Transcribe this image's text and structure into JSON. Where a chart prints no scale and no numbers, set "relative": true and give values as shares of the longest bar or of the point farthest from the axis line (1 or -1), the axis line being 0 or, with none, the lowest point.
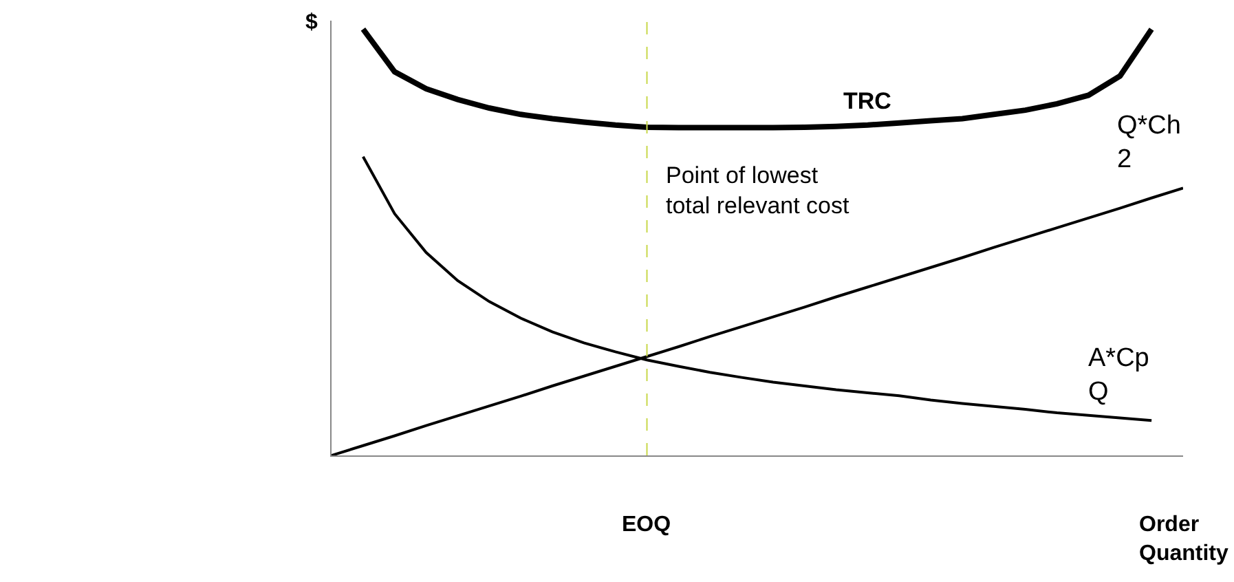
{
  "chart_data": {
    "type": "line",
    "relative": true,
    "ylabel": "$",
    "xlabel": "Order Quantity",
    "categories": [
      null,
      null,
      null,
      null,
      null,
      null,
      null,
      null,
      null,
      null,
      null,
      null,
      null,
      null,
      null,
      null,
      null,
      null,
      null,
      null,
      null,
      null,
      null,
      null,
      null,
      null,
      null,
      null
    ],
    "series": [
      {
        "name": "TRC",
        "color": "#000000",
        "values": [
          null,
          1.0,
          0.9,
          0.86,
          0.835,
          0.815,
          0.8,
          0.79,
          0.782,
          0.775,
          0.77,
          0.769,
          0.769,
          0.769,
          0.769,
          0.77,
          0.772,
          0.775,
          0.78,
          0.785,
          0.79,
          0.8,
          0.81,
          0.825,
          0.845,
          0.89,
          1.0,
          null
        ]
      },
      {
        "name": "Q*Ch\n2",
        "color": "#000000",
        "values": [
          0,
          0.023,
          0.046,
          0.07,
          0.093,
          0.116,
          0.139,
          0.163,
          0.186,
          0.209,
          0.232,
          0.255,
          0.279,
          0.302,
          0.325,
          0.348,
          0.372,
          0.395,
          0.418,
          0.441,
          0.464,
          0.488,
          0.511,
          0.534,
          0.557,
          0.58,
          0.604,
          0.627
        ]
      },
      {
        "name": "A*Cp\nQ",
        "color": "#000000",
        "values": [
          null,
          0.701,
          0.567,
          0.476,
          0.41,
          0.361,
          0.322,
          0.29,
          0.264,
          0.243,
          0.224,
          0.209,
          0.195,
          0.183,
          0.172,
          0.163,
          0.154,
          0.147,
          0.14,
          0.13,
          0.122,
          0.115,
          0.108,
          0.1,
          0.094,
          0.088,
          0.082,
          null
        ]
      }
    ],
    "annotations": [
      "Point of lowest\ntotal relevant cost",
      "EOQ"
    ],
    "legend": false,
    "marker": "none",
    "line_style": "solid"
  }
}
